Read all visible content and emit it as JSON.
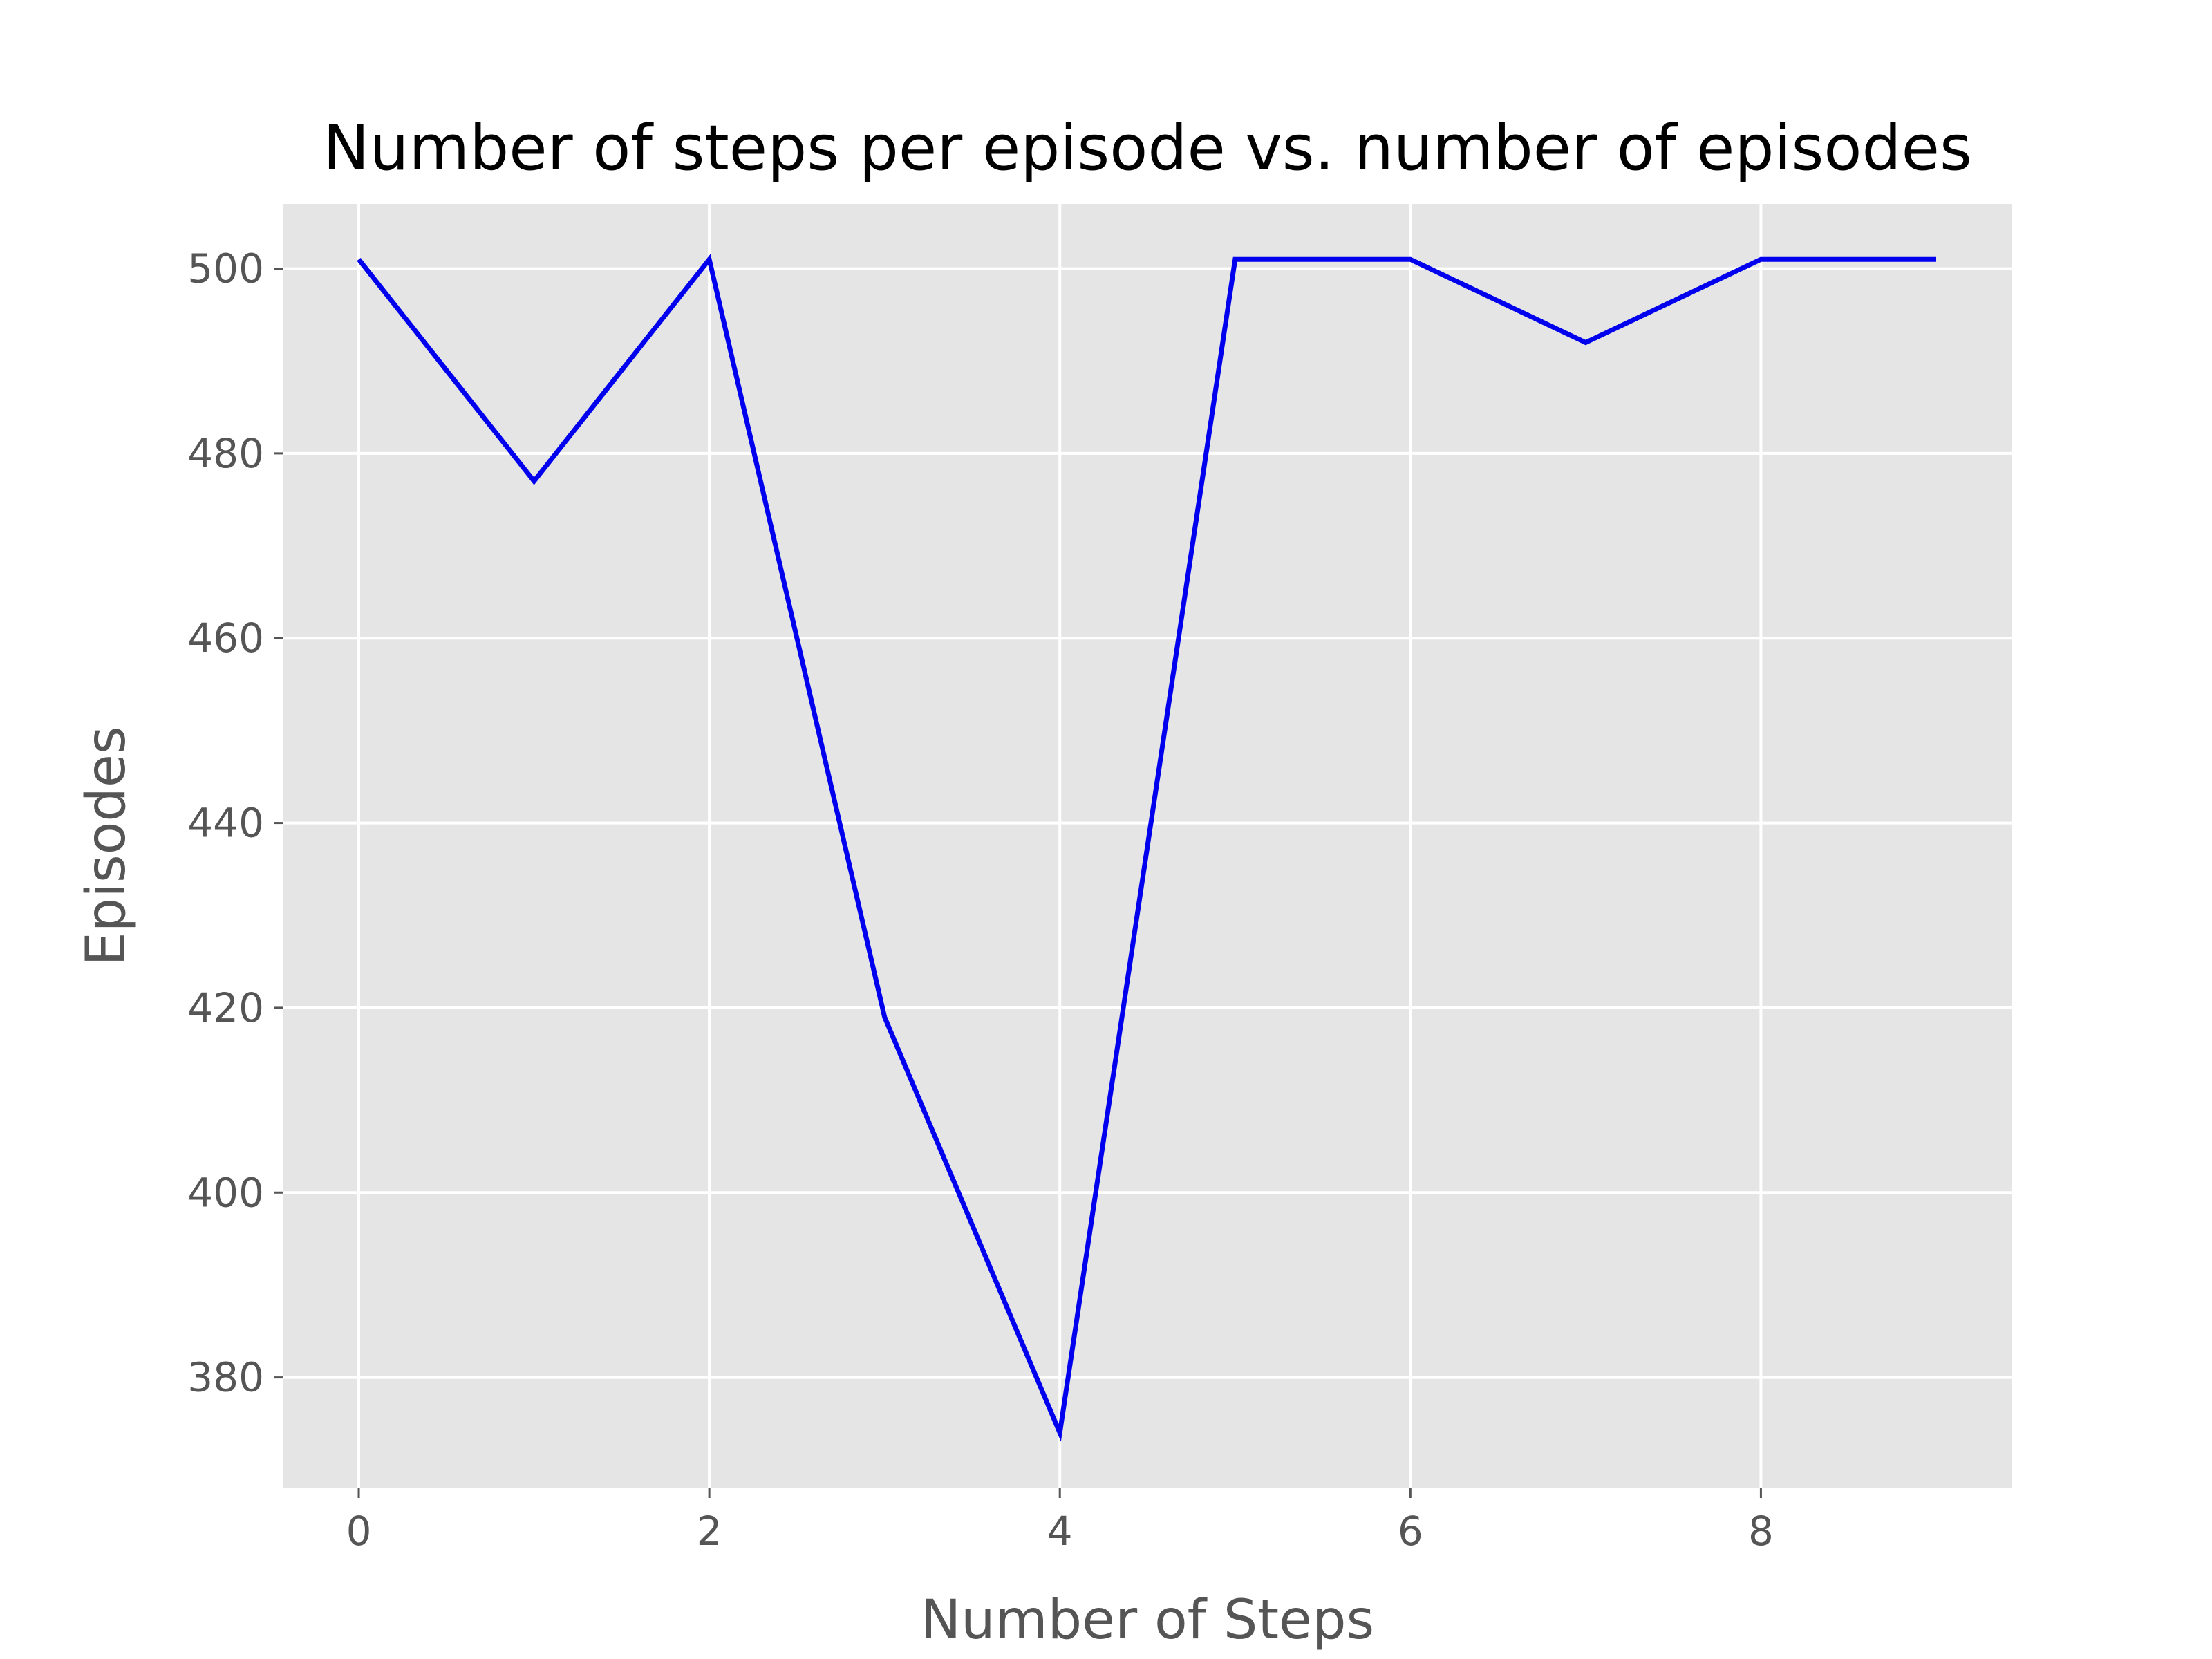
{
  "chart_data": {
    "type": "line",
    "title": "Number of steps per episode vs. number of episodes",
    "xlabel": "Number of Steps",
    "ylabel": "Episodes",
    "x": [
      0,
      1,
      2,
      3,
      4,
      5,
      6,
      7,
      8,
      9
    ],
    "series": [
      {
        "values": [
          501,
          477,
          501,
          419,
          374,
          501,
          501,
          492,
          501,
          501
        ]
      }
    ],
    "xlim": [
      -0.43,
      9.43
    ],
    "ylim": [
      368,
      507
    ],
    "xticks": [
      0,
      2,
      4,
      6,
      8
    ],
    "yticks": [
      380,
      400,
      420,
      440,
      460,
      480,
      500
    ],
    "grid": true,
    "legend": "none",
    "colors": {
      "plot_background": "#e5e5e5",
      "grid": "#ffffff",
      "line": "#0000ee",
      "text": "#555555",
      "title": "#000000"
    }
  }
}
